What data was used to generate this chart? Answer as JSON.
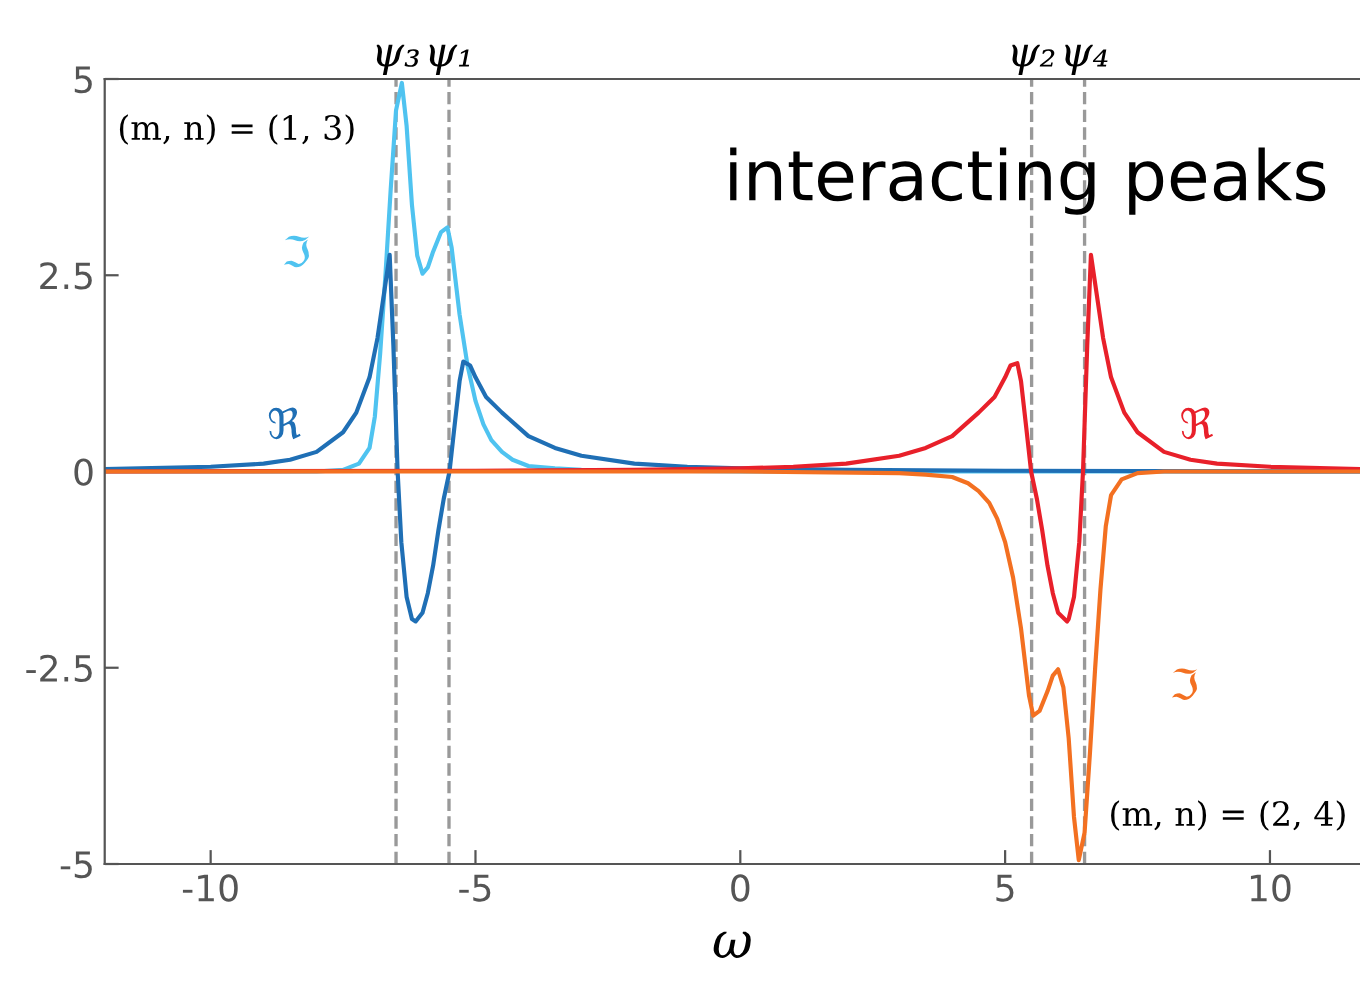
{
  "chart_data": {
    "type": "line",
    "xlabel": "ω",
    "xlim": [
      -12,
      11.7
    ],
    "ylim": [
      -5,
      5
    ],
    "xticks": [
      -10,
      -5,
      0,
      5,
      10
    ],
    "yticks": [
      -5,
      -2.5,
      0,
      2.5,
      5
    ],
    "grid": false,
    "legend": false,
    "annotations": [
      "(m, n) = (1, 3)",
      "(m, n) = (2, 4)",
      "interacting peaks"
    ],
    "ref_lines": [
      {
        "axis": "x",
        "value": -6.5,
        "label": "ψ₃",
        "color": "#999999",
        "line_style": "dashed"
      },
      {
        "axis": "x",
        "value": -5.5,
        "label": "ψ₁",
        "color": "#999999",
        "line_style": "dashed"
      },
      {
        "axis": "x",
        "value": 5.5,
        "label": "ψ₂",
        "color": "#999999",
        "line_style": "dashed"
      },
      {
        "axis": "x",
        "value": 6.5,
        "label": "ψ₄",
        "color": "#999999",
        "line_style": "dashed"
      }
    ],
    "series": [
      {
        "name": "ℑ",
        "color": "#4fc3f0",
        "x": [
          -12,
          -9,
          -8,
          -7.5,
          -7.2,
          -7.0,
          -6.9,
          -6.8,
          -6.7,
          -6.6,
          -6.5,
          -6.39,
          -6.3,
          -6.2,
          -6.1,
          -6.0,
          -5.9,
          -5.8,
          -5.65,
          -5.53,
          -5.45,
          -5.3,
          -5.15,
          -5.0,
          -4.85,
          -4.7,
          -4.5,
          -4.3,
          -4.0,
          -3.5,
          -3.0,
          0,
          11.7
        ],
        "values": [
          0,
          0,
          0,
          0.02,
          0.1,
          0.3,
          0.7,
          1.5,
          2.5,
          3.6,
          4.6,
          4.95,
          4.4,
          3.4,
          2.75,
          2.52,
          2.6,
          2.8,
          3.05,
          3.11,
          2.85,
          2.0,
          1.35,
          0.9,
          0.6,
          0.4,
          0.25,
          0.15,
          0.07,
          0.04,
          0.02,
          0,
          0
        ]
      },
      {
        "name": "ℜ",
        "color": "#1f6fb5",
        "x": [
          -12,
          -10,
          -9,
          -8.5,
          -8,
          -7.5,
          -7.25,
          -7.0,
          -6.85,
          -6.72,
          -6.62,
          -6.55,
          -6.47,
          -6.4,
          -6.3,
          -6.2,
          -6.13,
          -6.0,
          -5.9,
          -5.8,
          -5.7,
          -5.6,
          -5.49,
          -5.4,
          -5.3,
          -5.23,
          -5.1,
          -5.0,
          -4.8,
          -4.5,
          -4.0,
          -3.5,
          -3.0,
          -2.0,
          -1,
          0,
          2,
          5,
          11.7
        ],
        "values": [
          0.03,
          0.06,
          0.1,
          0.15,
          0.25,
          0.5,
          0.75,
          1.2,
          1.7,
          2.3,
          2.76,
          1.6,
          0,
          -0.9,
          -1.6,
          -1.88,
          -1.91,
          -1.8,
          -1.55,
          -1.2,
          -0.75,
          -0.35,
          0,
          0.55,
          1.15,
          1.4,
          1.35,
          1.2,
          0.95,
          0.75,
          0.45,
          0.3,
          0.2,
          0.1,
          0.06,
          0.04,
          0.02,
          0.01,
          0
        ]
      },
      {
        "name": "ℜ",
        "color": "#e8202a",
        "x": [
          -12,
          -5,
          -2,
          0,
          1,
          2,
          3,
          3.5,
          4,
          4.5,
          4.8,
          5.0,
          5.1,
          5.23,
          5.3,
          5.4,
          5.49,
          5.6,
          5.7,
          5.8,
          5.9,
          6.0,
          6.17,
          6.2,
          6.3,
          6.4,
          6.47,
          6.55,
          6.62,
          6.72,
          6.85,
          7.0,
          7.25,
          7.5,
          8,
          8.5,
          9,
          10,
          11.7
        ],
        "values": [
          0,
          0.01,
          0.02,
          0.04,
          0.06,
          0.1,
          0.2,
          0.3,
          0.45,
          0.75,
          0.95,
          1.2,
          1.35,
          1.38,
          1.15,
          0.55,
          0,
          -0.35,
          -0.75,
          -1.2,
          -1.55,
          -1.8,
          -1.91,
          -1.88,
          -1.6,
          -0.9,
          0,
          1.6,
          2.76,
          2.3,
          1.7,
          1.2,
          0.75,
          0.5,
          0.25,
          0.15,
          0.1,
          0.06,
          0.03
        ]
      },
      {
        "name": "ℑ",
        "color": "#f37021",
        "x": [
          -12,
          0,
          3.0,
          3.5,
          4.0,
          4.3,
          4.5,
          4.7,
          4.85,
          5.0,
          5.15,
          5.3,
          5.45,
          5.53,
          5.65,
          5.8,
          5.9,
          6.0,
          6.1,
          6.2,
          6.3,
          6.39,
          6.5,
          6.6,
          6.7,
          6.8,
          6.9,
          7.0,
          7.2,
          7.5,
          8,
          9,
          11.7
        ],
        "values": [
          0,
          0,
          -0.02,
          -0.04,
          -0.07,
          -0.15,
          -0.25,
          -0.4,
          -0.6,
          -0.9,
          -1.35,
          -2.0,
          -2.85,
          -3.11,
          -3.05,
          -2.8,
          -2.6,
          -2.52,
          -2.75,
          -3.4,
          -4.4,
          -4.95,
          -4.6,
          -3.6,
          -2.5,
          -1.5,
          -0.7,
          -0.3,
          -0.1,
          -0.02,
          0,
          0,
          0
        ]
      }
    ]
  }
}
